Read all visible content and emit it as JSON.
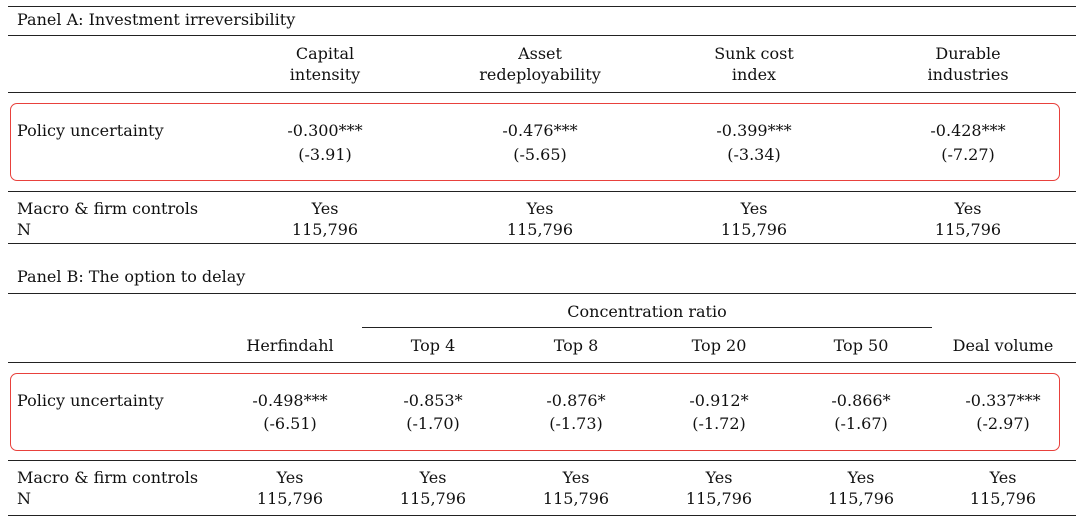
{
  "panel_a": {
    "title": "Panel A: Investment irreversibility",
    "columns": [
      {
        "line1": "Capital",
        "line2": "intensity"
      },
      {
        "line1": "Asset",
        "line2": "redeployability"
      },
      {
        "line1": "Sunk cost",
        "line2": "index"
      },
      {
        "line1": "Durable",
        "line2": "industries"
      }
    ],
    "row_label": "Policy uncertainty",
    "coefficients": [
      "-0.300***",
      "-0.476***",
      "-0.399***",
      "-0.428***"
    ],
    "tstats": [
      "(-3.91)",
      "(-5.65)",
      "(-3.34)",
      "(-7.27)"
    ],
    "controls_label": "Macro & firm controls",
    "controls": [
      "Yes",
      "Yes",
      "Yes",
      "Yes"
    ],
    "n_label": "N",
    "n": [
      "115,796",
      "115,796",
      "115,796",
      "115,796"
    ]
  },
  "panel_b": {
    "title": "Panel B: The option to delay",
    "group_header": "Concentration ratio",
    "columns": [
      "Herfindahl",
      "Top 4",
      "Top 8",
      "Top 20",
      "Top 50",
      "Deal volume"
    ],
    "row_label": "Policy uncertainty",
    "coefficients": [
      "-0.498***",
      "-0.853*",
      "-0.876*",
      "-0.912*",
      "-0.866*",
      "-0.337***"
    ],
    "tstats": [
      "(-6.51)",
      "(-1.70)",
      "(-1.73)",
      "(-1.72)",
      "(-1.67)",
      "(-2.97)"
    ],
    "controls_label": "Macro & firm controls",
    "controls": [
      "Yes",
      "Yes",
      "Yes",
      "Yes",
      "Yes",
      "Yes"
    ],
    "n_label": "N",
    "n": [
      "115,796",
      "115,796",
      "115,796",
      "115,796",
      "115,796",
      "115,796"
    ]
  },
  "highlight_color": "#e8413c"
}
